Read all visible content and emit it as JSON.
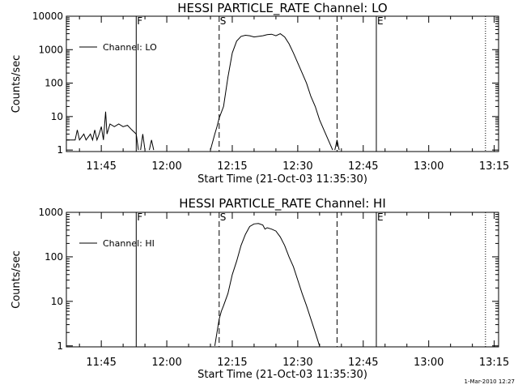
{
  "footer_timestamp": "1-Mar-2010 12:27",
  "chart_data": [
    {
      "type": "line",
      "title": "HESSI PARTICLE_RATE Channel: LO",
      "xlabel": "Start Time (21-Oct-03 11:35:30)",
      "ylabel": "Counts/sec",
      "y_scale": "log",
      "ylim": [
        0.9,
        10000
      ],
      "xlim": [
        "11:37",
        "13:16"
      ],
      "x_ticks": [
        "11:45",
        "12:00",
        "12:15",
        "12:30",
        "12:45",
        "13:00",
        "13:15"
      ],
      "y_ticks": [
        "1",
        "10",
        "100",
        "1000",
        "10000"
      ],
      "legend": "top-left",
      "markers": [
        {
          "label": "F",
          "time": "11:53",
          "style": "solid"
        },
        {
          "label": "S",
          "time": "12:12",
          "style": "dashed"
        },
        {
          "label": "",
          "time": "12:39",
          "style": "dashed"
        },
        {
          "label": "E",
          "time": "12:48",
          "style": "solid"
        },
        {
          "label": "",
          "time": "13:13",
          "style": "dotted"
        }
      ],
      "series": [
        {
          "name": "Channel: LO",
          "segments": [
            [
              [
                "11:37",
                2
              ],
              [
                "11:39",
                2
              ],
              [
                "11:39.5",
                4
              ],
              [
                "11:40",
                2
              ],
              [
                "11:41",
                3
              ],
              [
                "11:41.5",
                2
              ],
              [
                "11:42.5",
                3
              ],
              [
                "11:43",
                2
              ],
              [
                "11:43.5",
                4
              ],
              [
                "11:44",
                2
              ],
              [
                "11:44.5",
                3
              ],
              [
                "11:45",
                5
              ],
              [
                "11:45.5",
                2
              ],
              [
                "11:46",
                14
              ],
              [
                "11:46.3",
                3
              ],
              [
                "11:47",
                6
              ],
              [
                "11:48",
                5
              ],
              [
                "11:49",
                6
              ],
              [
                "11:50",
                5
              ],
              [
                "11:51",
                5.5
              ],
              [
                "11:52",
                4
              ],
              [
                "11:53",
                3
              ],
              [
                "11:53.5",
                1
              ]
            ],
            [
              [
                "11:54",
                1
              ],
              [
                "11:54.5",
                3
              ],
              [
                "11:55",
                1
              ]
            ],
            [
              [
                "11:56",
                1
              ],
              [
                "11:56.5",
                2
              ],
              [
                "11:57",
                1
              ]
            ],
            [
              [
                "12:10",
                1
              ],
              [
                "12:11",
                3
              ],
              [
                "12:11.5",
                5
              ],
              [
                "12:12",
                9
              ],
              [
                "12:13",
                20
              ],
              [
                "12:14",
                150
              ],
              [
                "12:15",
                800
              ],
              [
                "12:16",
                1800
              ],
              [
                "12:17",
                2500
              ],
              [
                "12:18",
                2700
              ],
              [
                "12:19",
                2600
              ],
              [
                "12:20",
                2400
              ],
              [
                "12:21",
                2500
              ],
              [
                "12:22",
                2600
              ],
              [
                "12:23",
                2800
              ],
              [
                "12:24",
                2900
              ],
              [
                "12:25",
                2600
              ],
              [
                "12:26",
                3000
              ],
              [
                "12:27",
                2400
              ],
              [
                "12:28",
                1500
              ],
              [
                "12:29",
                800
              ],
              [
                "12:30",
                400
              ],
              [
                "12:31",
                200
              ],
              [
                "12:32",
                100
              ],
              [
                "12:33",
                40
              ],
              [
                "12:34",
                20
              ],
              [
                "12:35",
                8
              ],
              [
                "12:36",
                4
              ],
              [
                "12:37",
                2
              ],
              [
                "12:38",
                1
              ]
            ],
            [
              [
                "12:38.5",
                1
              ],
              [
                "12:39",
                2
              ],
              [
                "12:39.5",
                1
              ]
            ]
          ]
        }
      ]
    },
    {
      "type": "line",
      "title": "HESSI PARTICLE_RATE Channel: HI",
      "xlabel": "Start Time (21-Oct-03 11:35:30)",
      "ylabel": "Counts/sec",
      "y_scale": "log",
      "ylim": [
        0.95,
        1000
      ],
      "xlim": [
        "11:37",
        "13:16"
      ],
      "x_ticks": [
        "11:45",
        "12:00",
        "12:15",
        "12:30",
        "12:45",
        "13:00",
        "13:15"
      ],
      "y_ticks": [
        "1",
        "10",
        "100",
        "1000"
      ],
      "legend": "top-left",
      "markers": [
        {
          "label": "F",
          "time": "11:53",
          "style": "solid"
        },
        {
          "label": "S",
          "time": "12:12",
          "style": "dashed"
        },
        {
          "label": "",
          "time": "12:39",
          "style": "dashed"
        },
        {
          "label": "E",
          "time": "12:48",
          "style": "solid"
        },
        {
          "label": "",
          "time": "13:13",
          "style": "dotted"
        }
      ],
      "series": [
        {
          "name": "Channel: HI",
          "segments": [
            [
              [
                "12:11",
                1
              ],
              [
                "12:11.5",
                2
              ],
              [
                "12:12",
                4
              ],
              [
                "12:12.5",
                6
              ],
              [
                "12:13",
                8
              ],
              [
                "12:14",
                15
              ],
              [
                "12:15",
                40
              ],
              [
                "12:16",
                80
              ],
              [
                "12:17",
                180
              ],
              [
                "12:18",
                320
              ],
              [
                "12:19",
                480
              ],
              [
                "12:20",
                550
              ],
              [
                "12:21",
                560
              ],
              [
                "12:22",
                520
              ],
              [
                "12:22.5",
                420
              ],
              [
                "12:23",
                450
              ],
              [
                "12:24",
                420
              ],
              [
                "12:25",
                380
              ],
              [
                "12:26",
                280
              ],
              [
                "12:27",
                180
              ],
              [
                "12:28",
                100
              ],
              [
                "12:29",
                60
              ],
              [
                "12:30",
                30
              ],
              [
                "12:31",
                15
              ],
              [
                "12:32",
                8
              ],
              [
                "12:33",
                4
              ],
              [
                "12:34",
                2
              ],
              [
                "12:35",
                1
              ]
            ]
          ]
        }
      ]
    }
  ]
}
